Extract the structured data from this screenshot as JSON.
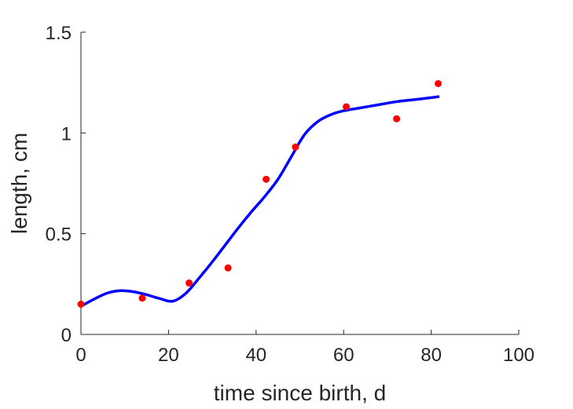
{
  "chart_data": {
    "type": "line",
    "title": "",
    "xlabel": "time since birth, d",
    "ylabel": "length, cm",
    "xlim": [
      0,
      100
    ],
    "ylim": [
      0,
      1.5
    ],
    "xticks": [
      0,
      20,
      40,
      60,
      80,
      100
    ],
    "xtick_labels": [
      "0",
      "20",
      "40",
      "60",
      "80",
      "100"
    ],
    "yticks": [
      0,
      0.5,
      1,
      1.5
    ],
    "ytick_labels": [
      "0",
      "0.5",
      "1",
      "1.5"
    ],
    "grid": false,
    "box": false,
    "series": [
      {
        "kind": "scatter",
        "color": "#ff0000",
        "marker": "filled-circle",
        "x": [
          0,
          14,
          24.7,
          33.6,
          42.3,
          49,
          60.6,
          72.1,
          81.6
        ],
        "y": [
          0.15,
          0.18,
          0.255,
          0.33,
          0.77,
          0.93,
          1.13,
          1.07,
          1.245
        ]
      },
      {
        "kind": "line",
        "color": "#0000ff",
        "x": [
          0,
          3,
          6,
          9,
          12,
          15,
          18,
          21,
          24,
          27,
          30,
          33,
          36,
          39,
          42,
          45,
          48,
          51,
          54,
          57,
          60,
          64,
          68,
          72,
          76,
          80,
          81.6
        ],
        "y": [
          0.14,
          0.175,
          0.205,
          0.217,
          0.212,
          0.197,
          0.178,
          0.165,
          0.205,
          0.28,
          0.36,
          0.445,
          0.53,
          0.61,
          0.685,
          0.77,
          0.88,
          0.99,
          1.055,
          1.09,
          1.11,
          1.125,
          1.14,
          1.155,
          1.165,
          1.175,
          1.18
        ]
      }
    ]
  }
}
